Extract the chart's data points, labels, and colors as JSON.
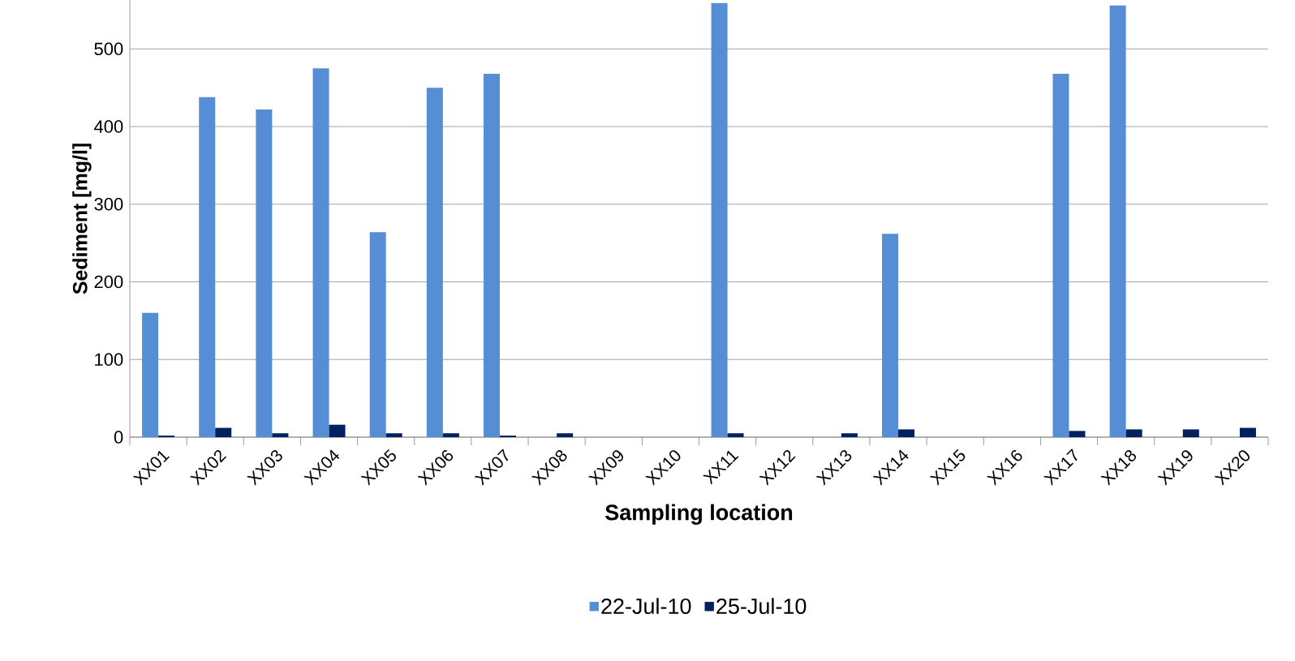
{
  "chart_data": {
    "type": "bar",
    "xlabel": "Sampling location",
    "ylabel": "Sediment [mg/l]",
    "categories": [
      "XX01",
      "XX02",
      "XX03",
      "XX04",
      "XX05",
      "XX06",
      "XX07",
      "XX08",
      "XX09",
      "XX10",
      "XX11",
      "XX12",
      "XX13",
      "XX14",
      "XX15",
      "XX16",
      "XX17",
      "XX18",
      "XX19",
      "XX20"
    ],
    "series": [
      {
        "name": "22-Jul-10",
        "color": "#558ed5",
        "values": [
          160,
          438,
          422,
          475,
          264,
          450,
          468,
          null,
          null,
          null,
          559,
          null,
          null,
          262,
          null,
          null,
          468,
          556,
          null,
          null
        ]
      },
      {
        "name": "25-Jul-10",
        "color": "#002060",
        "values": [
          2,
          12,
          5,
          16,
          5,
          5,
          2,
          5,
          null,
          null,
          5,
          null,
          5,
          10,
          null,
          null,
          8,
          10,
          10,
          12
        ]
      }
    ],
    "ylim": [
      0,
      563
    ],
    "yticks": [
      0,
      100,
      200,
      300,
      400,
      500
    ],
    "grid": "y",
    "legend": "bottom"
  }
}
